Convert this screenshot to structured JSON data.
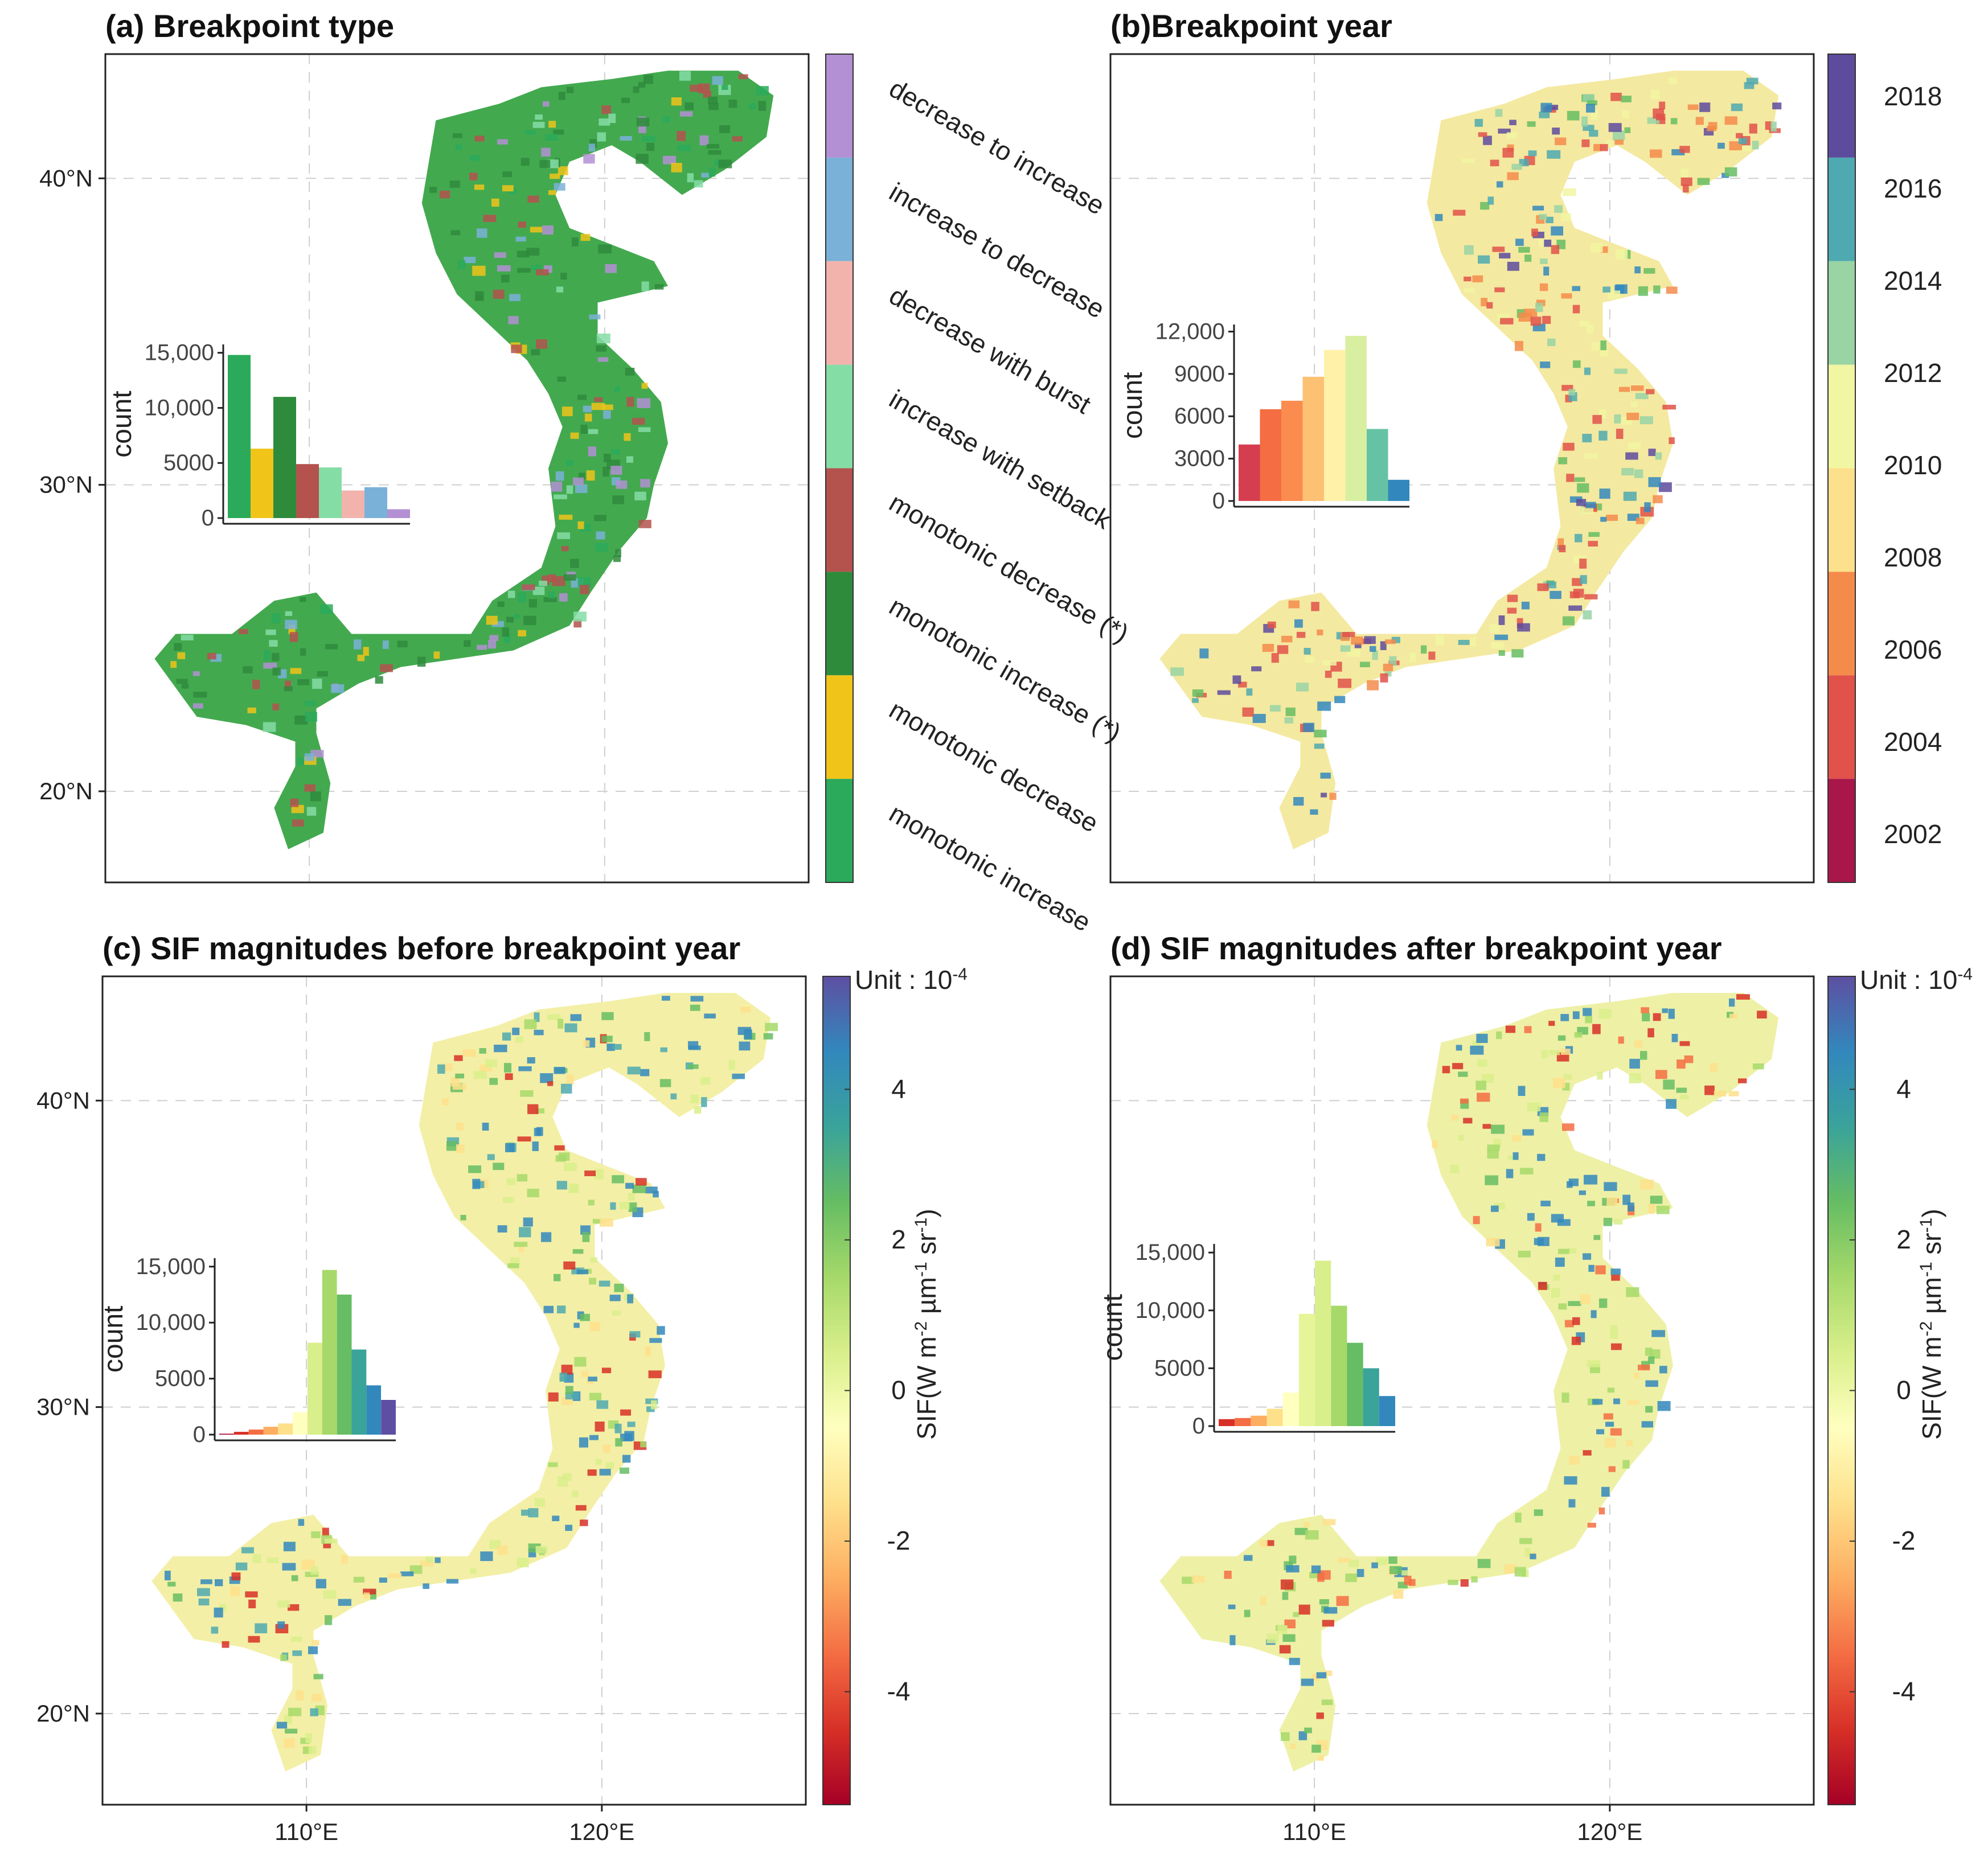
{
  "palettes": {
    "type": [
      "#2aaa5a",
      "#f0c419",
      "#2f8b3c",
      "#b4524d",
      "#85dda6",
      "#f3b3ad",
      "#7ab1d8",
      "#b390d3"
    ],
    "year": [
      "#a8164a",
      "#e0524a",
      "#f58b4b",
      "#fde08b",
      "#f1f6a2",
      "#98d4a4",
      "#4ea9b0",
      "#5d4b9d"
    ],
    "sif": [
      "#a50026",
      "#d73027",
      "#f46d43",
      "#fdae61",
      "#fee08b",
      "#ffffbf",
      "#d9ef8b",
      "#a6d96a",
      "#66bd63",
      "#3aa39a",
      "#3288bd",
      "#5e4fa2"
    ]
  },
  "axes": {
    "lat_ticks": [
      "40°N",
      "30°N",
      "20°N"
    ],
    "lon_ticks": [
      "110°E",
      "120°E"
    ]
  },
  "chart_data": [
    {
      "id": "a",
      "type": "map",
      "title": "(a) Breakpoint type",
      "legend": {
        "type": "categorical",
        "labels_top_to_bottom": [
          "decrease to increase",
          "increase to decrease",
          "decrease with burst",
          "increase with setback",
          "monotonic decrease (*)",
          "monotonic increase (*)",
          "monotonic decrease",
          "monotonic increase"
        ],
        "colors_top_to_bottom": [
          "#b390d3",
          "#7ab1d8",
          "#f3b3ad",
          "#85dda6",
          "#b4524d",
          "#2f8b3c",
          "#f0c419",
          "#2aaa5a"
        ]
      },
      "inset": {
        "type": "bar",
        "ylabel": "count",
        "yticks": [
          0,
          5000,
          10000,
          15000
        ],
        "ytick_labels": [
          "0",
          "5000",
          "10,000",
          "15,000"
        ],
        "ylim": [
          0,
          15500
        ],
        "values": [
          14800,
          6300,
          11000,
          4900,
          4600,
          2500,
          2800,
          800
        ],
        "colors": [
          "#2aaa5a",
          "#f0c419",
          "#2f8b3c",
          "#b4524d",
          "#85dda6",
          "#f3b3ad",
          "#7ab1d8",
          "#b390d3"
        ]
      }
    },
    {
      "id": "b",
      "type": "map",
      "title": "(b)Breakpoint year",
      "legend": {
        "type": "binned",
        "labels_top_to_bottom": [
          "2018",
          "2016",
          "2014",
          "2012",
          "2010",
          "2008",
          "2006",
          "2004",
          "2002"
        ],
        "colors_top_to_bottom": [
          "#5d4b9d",
          "#4ea9b0",
          "#98d4a4",
          "#f1f6a2",
          "#fde08b",
          "#f58b4b",
          "#e0524a",
          "#a8164a"
        ]
      },
      "inset": {
        "type": "bar",
        "ylabel": "count",
        "yticks": [
          0,
          3000,
          6000,
          9000,
          12000
        ],
        "ytick_labels": [
          "0",
          "3000",
          "6000",
          "9000",
          "12,000"
        ],
        "ylim": [
          0,
          12300
        ],
        "values": [
          4000,
          6500,
          7100,
          8800,
          10700,
          11700,
          5100,
          1500
        ],
        "colors": [
          "#d53e4f",
          "#f46d43",
          "#fa8c4f",
          "#fdc174",
          "#fff1a8",
          "#d8efa1",
          "#66c2a5",
          "#3288bd"
        ]
      }
    },
    {
      "id": "c",
      "type": "map",
      "title": "(c) SIF magnitudes before breakpoint year",
      "legend": {
        "type": "continuous",
        "unit": "Unit : 10",
        "unit_exp": "-4",
        "ticks": [
          4,
          2,
          0,
          -2,
          -4
        ],
        "tick_labels": [
          "4",
          "2",
          "0",
          "-2",
          "-4"
        ],
        "range": [
          -5.5,
          5.5
        ],
        "title_parts": {
          "a": "SIF(W m",
          "b": "-2",
          "c": " µm",
          "d": "-1",
          "e": " sr",
          "f": "-1",
          "g": ")"
        }
      },
      "inset": {
        "type": "bar",
        "ylabel": "count",
        "yticks": [
          0,
          5000,
          10000,
          15000
        ],
        "ytick_labels": [
          "0",
          "5000",
          "10,000",
          "15,000"
        ],
        "ylim": [
          0,
          15500
        ],
        "values": [
          80,
          250,
          450,
          700,
          1000,
          2000,
          8200,
          14700,
          12500,
          7600,
          4400,
          3100
        ],
        "colors": [
          "#a50026",
          "#d73027",
          "#f46d43",
          "#fdae61",
          "#fee08b",
          "#ffffbf",
          "#d9ef8b",
          "#a6d96a",
          "#66bd63",
          "#3aa39a",
          "#3288bd",
          "#5e4fa2"
        ]
      }
    },
    {
      "id": "d",
      "type": "map",
      "title": "(d) SIF magnitudes after breakpoint year",
      "legend": {
        "type": "continuous",
        "unit": "Unit : 10",
        "unit_exp": "-4",
        "ticks": [
          4,
          2,
          0,
          -2,
          -4
        ],
        "tick_labels": [
          "4",
          "2",
          "0",
          "-2",
          "-4"
        ],
        "range": [
          -5.5,
          5.5
        ],
        "title_parts": {
          "a": "SIF(W m",
          "b": "-2",
          "c": " µm",
          "d": "-1",
          "e": " sr",
          "f": "-1",
          "g": ")"
        }
      },
      "inset": {
        "type": "bar",
        "ylabel": "count",
        "yticks": [
          0,
          5000,
          10000,
          15000
        ],
        "ytick_labels": [
          "0",
          "5000",
          "10,000",
          "15,000"
        ],
        "ylim": [
          0,
          15500
        ],
        "values": [
          600,
          700,
          900,
          1500,
          2900,
          9700,
          14300,
          10400,
          7200,
          5000,
          2600
        ],
        "colors": [
          "#d73027",
          "#f46d43",
          "#fdae61",
          "#fee08b",
          "#ffffbf",
          "#e6f598",
          "#d9ef8b",
          "#a6d96a",
          "#66bd63",
          "#3aa39a",
          "#3288bd"
        ]
      }
    }
  ]
}
